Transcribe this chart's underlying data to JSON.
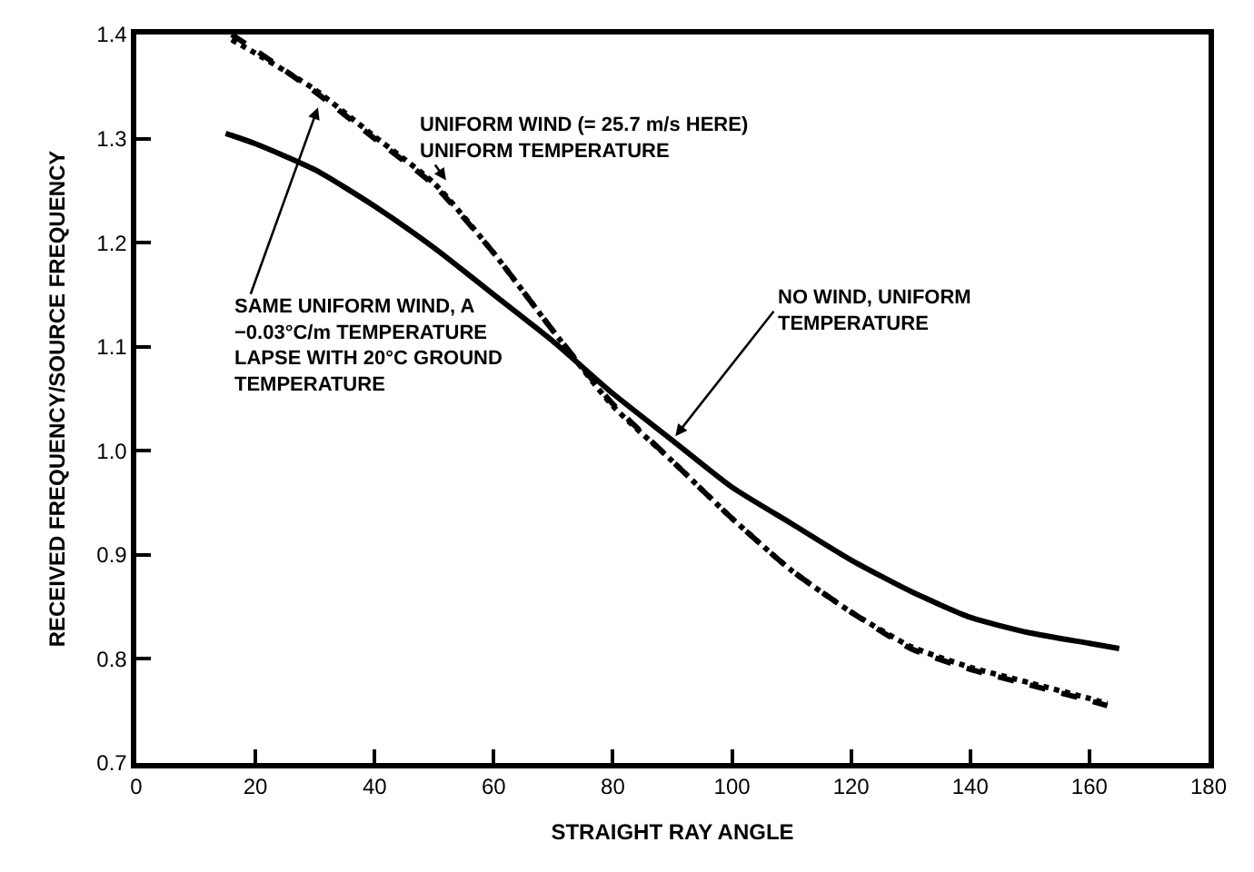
{
  "chart_data": {
    "type": "line",
    "xlabel": "STRAIGHT RAY ANGLE",
    "ylabel": "RECEIVED FREQUENCY/SOURCE FREQUENCY",
    "x": [
      15,
      20,
      30,
      40,
      50,
      60,
      70,
      80,
      90,
      100,
      110,
      120,
      130,
      140,
      150,
      160,
      165
    ],
    "series": [
      {
        "color": "#000000",
        "line_style": "solid",
        "values": [
          1.305,
          1.295,
          1.27,
          1.235,
          1.195,
          1.15,
          1.105,
          1.055,
          1.01,
          0.965,
          0.93,
          0.895,
          0.865,
          0.84,
          0.825,
          0.815,
          0.81
        ]
      },
      {
        "color": "#000000",
        "line_style": "dashed",
        "x": [
          16,
          20,
          30,
          40,
          50,
          60,
          70,
          80,
          90,
          100,
          110,
          120,
          130,
          140,
          150,
          160,
          163
        ],
        "values": [
          1.4,
          1.385,
          1.345,
          1.3,
          1.255,
          1.19,
          1.115,
          1.045,
          0.99,
          0.935,
          0.885,
          0.845,
          0.81,
          0.79,
          0.775,
          0.76,
          0.755
        ]
      },
      {
        "color": "#000000",
        "line_style": "dotted",
        "x": [
          16,
          20,
          30,
          40,
          50,
          60,
          70,
          80,
          90,
          100,
          110,
          120,
          130,
          140,
          150,
          160,
          163
        ],
        "values": [
          1.395,
          1.382,
          1.347,
          1.302,
          1.257,
          1.19,
          1.115,
          1.043,
          0.99,
          0.935,
          0.885,
          0.845,
          0.812,
          0.792,
          0.777,
          0.762,
          0.757
        ]
      }
    ],
    "annotations": [
      {
        "text": "UNIFORM WIND (= 25.7 m/s HERE)\nUNIFORM TEMPERATURE",
        "x": 52,
        "y": 1.26
      },
      {
        "text": "SAME UNIFORM WIND, A\n−0.03°C/m TEMPERATURE\nLAPSE WITH 20°C GROUND\nTEMPERATURE",
        "x": 30.5,
        "y": 1.33
      },
      {
        "text": "NO WIND, UNIFORM\nTEMPERATURE",
        "x": 90.5,
        "y": 1.014
      }
    ],
    "xlim": [
      0,
      180
    ],
    "xticks": [
      0,
      20,
      40,
      60,
      80,
      100,
      120,
      140,
      160,
      180
    ],
    "ylim": [
      0.7,
      1.4
    ],
    "yticks": [
      0.7,
      0.8,
      0.9,
      {
        "value": 1.0,
        "label": "1.0"
      },
      1.1,
      1.2,
      1.3,
      1.4
    ]
  }
}
